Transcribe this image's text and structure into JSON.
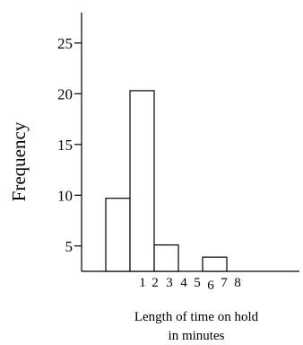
{
  "chart_data": {
    "type": "bar",
    "title": "",
    "ylabel": "Frequency",
    "xlabel_lines": [
      "Length of time on hold",
      "in minutes"
    ],
    "ylim": [
      2.5,
      28
    ],
    "yticks": [
      5,
      10,
      15,
      20,
      25
    ],
    "xticks": [
      "1",
      "2",
      "3",
      "4",
      "5",
      "6",
      "7",
      "8"
    ],
    "bars": [
      {
        "x_start": 0,
        "x_end": 1,
        "value": 9.7
      },
      {
        "x_start": 1,
        "x_end": 2,
        "value": 20.3
      },
      {
        "x_start": 2,
        "x_end": 3,
        "value": 5.1
      },
      {
        "x_start": 4,
        "x_end": 5,
        "value": 3.9
      }
    ],
    "grid": false
  }
}
